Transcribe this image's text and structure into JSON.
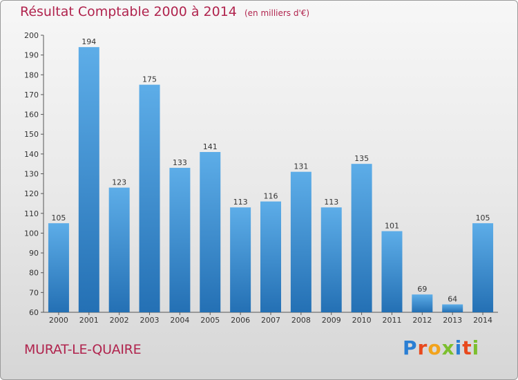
{
  "title": "Résultat Comptable 2000 à 2014",
  "subtitle": "(en milliers d'€)",
  "place": "MURAT-LE-QUAIRE",
  "brand": "Proxiti",
  "colors": {
    "accent": "#b0234d",
    "bar_top": "#5dade8",
    "bar_bottom": "#2470b4"
  },
  "chart_data": {
    "type": "bar",
    "title": "Résultat Comptable 2000 à 2014",
    "subtitle": "(en milliers d'€)",
    "categories": [
      "2000",
      "2001",
      "2002",
      "2003",
      "2004",
      "2005",
      "2006",
      "2007",
      "2008",
      "2009",
      "2010",
      "2011",
      "2012",
      "2013",
      "2014"
    ],
    "values": [
      105,
      194,
      123,
      175,
      133,
      141,
      113,
      116,
      131,
      113,
      135,
      101,
      69,
      64,
      105
    ],
    "ylim": [
      60,
      200
    ],
    "yticks": [
      60,
      70,
      80,
      90,
      100,
      110,
      120,
      130,
      140,
      150,
      160,
      170,
      180,
      190,
      200
    ],
    "grid": false,
    "xlabel": "",
    "ylabel": ""
  }
}
